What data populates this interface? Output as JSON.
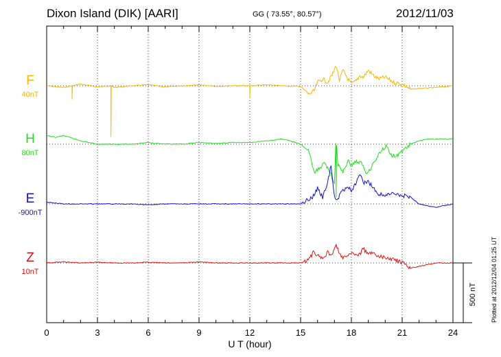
{
  "header": {
    "station": "Dixon Island (DIK)  [AARI]",
    "coords": "GG ( 73.55°,  80.57°)",
    "date": "2012/11/03"
  },
  "plotted_note": "Plotted at 2012/12/04 01:25 UT",
  "colors": {
    "F": "#f5b400",
    "H": "#22dd22",
    "E": "#1111cc",
    "Z": "#dd1111",
    "grid": "#000000"
  },
  "chart_data": {
    "type": "line",
    "title": "Dixon Island (DIK)  [AARI]",
    "xlabel": "U T (hour)",
    "ylabel": "",
    "xlim": [
      0,
      24
    ],
    "xticks": [
      "0",
      "3",
      "6",
      "9",
      "12",
      "15",
      "18",
      "21",
      "24"
    ],
    "grid": "vertical dotted every 3 hours; dotted baseline per channel",
    "scale_bar": {
      "label": "500 nT",
      "value_nT": 500
    },
    "series": [
      {
        "name": "F",
        "scale_label": "40nT",
        "baseline_nT": 0,
        "points": [
          [
            0,
            0
          ],
          [
            1,
            -5
          ],
          [
            1.5,
            0
          ],
          [
            2,
            5
          ],
          [
            3,
            -3
          ],
          [
            3.8,
            0
          ],
          [
            4,
            -5
          ],
          [
            5,
            0
          ],
          [
            6,
            3
          ],
          [
            7,
            -3
          ],
          [
            8,
            0
          ],
          [
            9,
            3
          ],
          [
            10,
            -2
          ],
          [
            11,
            0
          ],
          [
            12,
            -3
          ],
          [
            13,
            3
          ],
          [
            14,
            0
          ],
          [
            15,
            -2
          ],
          [
            15.5,
            -25
          ],
          [
            15.8,
            -15
          ],
          [
            16,
            10
          ],
          [
            16.3,
            20
          ],
          [
            16.6,
            10
          ],
          [
            16.9,
            35
          ],
          [
            17.1,
            60
          ],
          [
            17.3,
            15
          ],
          [
            17.5,
            45
          ],
          [
            17.8,
            20
          ],
          [
            18,
            5
          ],
          [
            18.3,
            15
          ],
          [
            18.5,
            30
          ],
          [
            18.7,
            25
          ],
          [
            19,
            45
          ],
          [
            19.3,
            30
          ],
          [
            19.6,
            20
          ],
          [
            20,
            25
          ],
          [
            20.5,
            10
          ],
          [
            21,
            5
          ],
          [
            21.5,
            -10
          ],
          [
            22,
            -8
          ],
          [
            23,
            -5
          ],
          [
            24,
            0
          ]
        ],
        "spikes": [
          [
            1.5,
            -40
          ],
          [
            3.8,
            -150
          ],
          [
            12,
            -35
          ]
        ]
      },
      {
        "name": "H",
        "scale_label": "80nT",
        "baseline_nT": 0,
        "points": [
          [
            0,
            25
          ],
          [
            0.5,
            20
          ],
          [
            1,
            25
          ],
          [
            2,
            10
          ],
          [
            3,
            0
          ],
          [
            4,
            0
          ],
          [
            5,
            0
          ],
          [
            6,
            5
          ],
          [
            7,
            0
          ],
          [
            8,
            0
          ],
          [
            9,
            5
          ],
          [
            10,
            2
          ],
          [
            11,
            5
          ],
          [
            12,
            5
          ],
          [
            13,
            10
          ],
          [
            14,
            15
          ],
          [
            15,
            0
          ],
          [
            15.5,
            -20
          ],
          [
            15.8,
            -85
          ],
          [
            16.1,
            -70
          ],
          [
            16.4,
            -55
          ],
          [
            16.7,
            -75
          ],
          [
            17,
            -120
          ],
          [
            17.2,
            -60
          ],
          [
            17.5,
            -80
          ],
          [
            17.8,
            -50
          ],
          [
            18,
            -60
          ],
          [
            18.3,
            -50
          ],
          [
            18.6,
            -55
          ],
          [
            18.9,
            -85
          ],
          [
            19.2,
            -65
          ],
          [
            19.5,
            -40
          ],
          [
            19.8,
            -15
          ],
          [
            20.1,
            -5
          ],
          [
            20.4,
            -35
          ],
          [
            20.7,
            -35
          ],
          [
            21,
            -20
          ],
          [
            21.5,
            0
          ],
          [
            22,
            10
          ],
          [
            22.5,
            15
          ],
          [
            23,
            15
          ],
          [
            24,
            15
          ]
        ],
        "spikes": [
          [
            17.1,
            -150
          ]
        ]
      },
      {
        "name": "E",
        "scale_label": "-900nT",
        "baseline_nT": 0,
        "points": [
          [
            0,
            5
          ],
          [
            1,
            0
          ],
          [
            2,
            0
          ],
          [
            3,
            0
          ],
          [
            4,
            0
          ],
          [
            5,
            0
          ],
          [
            6,
            -3
          ],
          [
            7,
            0
          ],
          [
            8,
            0
          ],
          [
            9,
            0
          ],
          [
            10,
            0
          ],
          [
            11,
            0
          ],
          [
            12,
            0
          ],
          [
            13,
            0
          ],
          [
            14,
            0
          ],
          [
            15,
            0
          ],
          [
            15.3,
            10
          ],
          [
            15.7,
            20
          ],
          [
            16,
            45
          ],
          [
            16.3,
            20
          ],
          [
            16.6,
            60
          ],
          [
            16.8,
            115
          ],
          [
            17,
            20
          ],
          [
            17.2,
            15
          ],
          [
            17.5,
            40
          ],
          [
            17.8,
            50
          ],
          [
            18,
            40
          ],
          [
            18.3,
            60
          ],
          [
            18.5,
            90
          ],
          [
            18.7,
            60
          ],
          [
            19,
            65
          ],
          [
            19.3,
            45
          ],
          [
            19.6,
            30
          ],
          [
            20,
            25
          ],
          [
            20.5,
            30
          ],
          [
            21,
            25
          ],
          [
            21.5,
            20
          ],
          [
            22,
            0
          ],
          [
            22.5,
            -5
          ],
          [
            23,
            -10
          ],
          [
            24,
            0
          ]
        ],
        "spikes": []
      },
      {
        "name": "Z",
        "scale_label": "10nT",
        "baseline_nT": 0,
        "points": [
          [
            0,
            0
          ],
          [
            1,
            3
          ],
          [
            2,
            0
          ],
          [
            3,
            2
          ],
          [
            4,
            0
          ],
          [
            5,
            0
          ],
          [
            6,
            2
          ],
          [
            7,
            0
          ],
          [
            8,
            0
          ],
          [
            9,
            3
          ],
          [
            10,
            0
          ],
          [
            11,
            0
          ],
          [
            12,
            0
          ],
          [
            13,
            0
          ],
          [
            14,
            0
          ],
          [
            15,
            0
          ],
          [
            15.5,
            10
          ],
          [
            15.8,
            35
          ],
          [
            16,
            20
          ],
          [
            16.3,
            15
          ],
          [
            16.6,
            30
          ],
          [
            16.9,
            25
          ],
          [
            17.1,
            55
          ],
          [
            17.3,
            25
          ],
          [
            17.5,
            15
          ],
          [
            17.8,
            20
          ],
          [
            18.1,
            30
          ],
          [
            18.4,
            20
          ],
          [
            18.7,
            40
          ],
          [
            19,
            30
          ],
          [
            19.3,
            25
          ],
          [
            19.6,
            20
          ],
          [
            20,
            15
          ],
          [
            20.5,
            10
          ],
          [
            21,
            0
          ],
          [
            21.5,
            -15
          ],
          [
            22,
            -10
          ],
          [
            22.5,
            -5
          ],
          [
            23,
            0
          ],
          [
            24,
            0
          ]
        ],
        "spikes": []
      }
    ]
  }
}
